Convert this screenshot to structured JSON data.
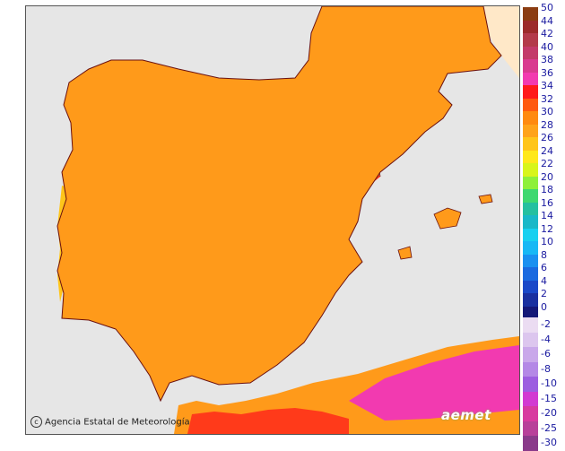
{
  "map": {
    "attribution": "Agencia Estatal de Meteorología",
    "brand_watermark": "aemet"
  },
  "legend": {
    "positive": [
      {
        "label": "50",
        "color": "#8b3d12"
      },
      {
        "label": "44",
        "color": "#9c2a2a"
      },
      {
        "label": "42",
        "color": "#b33a4a"
      },
      {
        "label": "40",
        "color": "#c33a6a"
      },
      {
        "label": "38",
        "color": "#d93a8f"
      },
      {
        "label": "36",
        "color": "#f23ab0"
      },
      {
        "label": "34",
        "color": "#ff1a1a"
      },
      {
        "label": "32",
        "color": "#ff5a10"
      },
      {
        "label": "30",
        "color": "#ff8a10"
      },
      {
        "label": "28",
        "color": "#ffa31a"
      },
      {
        "label": "26",
        "color": "#ffc51a"
      },
      {
        "label": "24",
        "color": "#ffe81a"
      },
      {
        "label": "22",
        "color": "#d8f51a"
      },
      {
        "label": "20",
        "color": "#8ef03a"
      },
      {
        "label": "18",
        "color": "#3ed870"
      },
      {
        "label": "16",
        "color": "#25c0a0"
      },
      {
        "label": "14",
        "color": "#1ab8c8"
      },
      {
        "label": "12",
        "color": "#18d0f0"
      },
      {
        "label": "10",
        "color": "#18b8f5"
      },
      {
        "label": "8",
        "color": "#1a90f0"
      },
      {
        "label": "6",
        "color": "#1a6ae0"
      },
      {
        "label": "4",
        "color": "#1a48c8"
      },
      {
        "label": "2",
        "color": "#1a30a0"
      },
      {
        "label": "0",
        "color": "#151878"
      }
    ],
    "negative": [
      {
        "label": "-2",
        "color": "#ebdcf2"
      },
      {
        "label": "-4",
        "color": "#dcc6ee"
      },
      {
        "label": "-6",
        "color": "#c9a8ea"
      },
      {
        "label": "-8",
        "color": "#b488e6"
      },
      {
        "label": "-10",
        "color": "#9c5ee0"
      },
      {
        "label": "-15",
        "color": "#d23ad2"
      },
      {
        "label": "-20",
        "color": "#d83aa0"
      },
      {
        "label": "-25",
        "color": "#b8409a"
      },
      {
        "label": "-30",
        "color": "#8a3a8a"
      }
    ]
  },
  "colors": {
    "sea": "#e6e6e6",
    "outside_land": "#ffeacc",
    "border": "#6a1010"
  }
}
